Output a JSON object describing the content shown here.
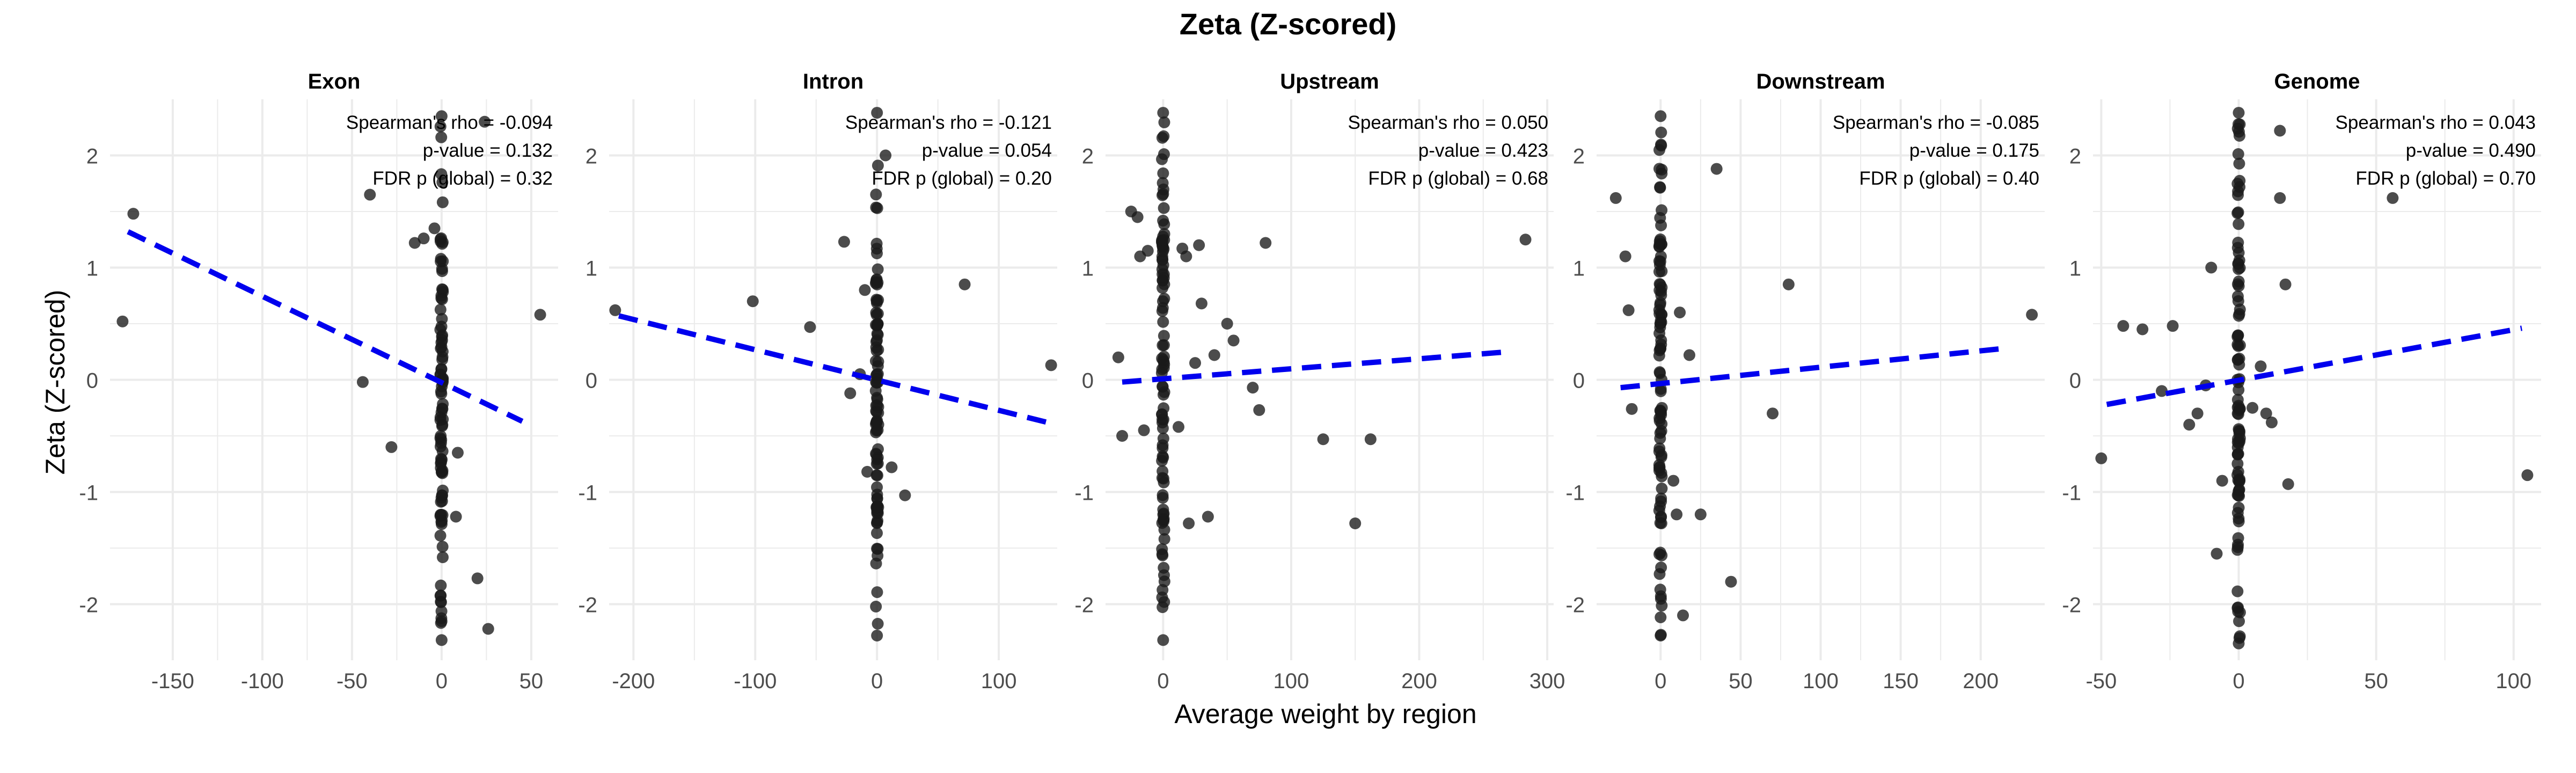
{
  "figure": {
    "title": "Zeta (Z-scored)",
    "xlabel": "Average weight by region",
    "ylabel": "Zeta (Z-scored)"
  },
  "colors": {
    "points": "#1a1a1a",
    "trend": "#0000ee",
    "grid": "#ebebeb"
  },
  "chart_data": [
    {
      "type": "scatter",
      "title": "Exon",
      "ylim": [
        -2.5,
        2.5
      ],
      "xlim": [
        -185,
        65
      ],
      "x_ticks": [
        -150,
        -100,
        -50,
        0,
        50
      ],
      "y_ticks": [
        -2,
        -1,
        0,
        1,
        2
      ],
      "annotation": [
        "Spearman's rho = -0.094",
        "p-value = 0.132",
        "FDR p (global) = 0.32"
      ],
      "trend": {
        "x": [
          -175,
          45
        ],
        "y": [
          1.32,
          -0.37
        ]
      },
      "points": {
        "x": [
          -178,
          -172,
          -44,
          -40,
          -28,
          -15,
          -10,
          -4,
          8,
          9,
          20,
          24,
          26,
          55
        ],
        "y": [
          0.52,
          1.48,
          -0.02,
          1.65,
          -0.6,
          1.22,
          1.26,
          1.35,
          -1.22,
          -0.65,
          -1.77,
          2.3,
          -2.22,
          0.58
        ]
      },
      "cluster": {
        "x": 0,
        "y_min": -2.32,
        "y_max": 2.35
      }
    },
    {
      "type": "scatter",
      "title": "Intron",
      "ylim": [
        -2.5,
        2.5
      ],
      "xlim": [
        -220,
        148
      ],
      "x_ticks": [
        -200,
        -100,
        0,
        100
      ],
      "y_ticks": [
        -2,
        -1,
        0,
        1,
        2
      ],
      "annotation": [
        "Spearman's rho = -0.121",
        "p-value = 0.054",
        "FDR p (global) = 0.20"
      ],
      "trend": {
        "x": [
          -212,
          140
        ],
        "y": [
          0.57,
          -0.38
        ]
      },
      "points": {
        "x": [
          -215,
          -102,
          -55,
          -27,
          -22,
          -14,
          -10,
          -8,
          7,
          12,
          23,
          72,
          143
        ],
        "y": [
          0.62,
          0.7,
          0.47,
          1.23,
          -0.12,
          0.05,
          0.8,
          -0.82,
          2.0,
          -0.78,
          -1.03,
          0.85,
          0.13
        ]
      },
      "cluster": {
        "x": 0,
        "y_min": -2.28,
        "y_max": 2.38
      }
    },
    {
      "type": "scatter",
      "title": "Upstream",
      "ylim": [
        -2.5,
        2.5
      ],
      "xlim": [
        -45,
        305
      ],
      "x_ticks": [
        0,
        100,
        200,
        300
      ],
      "y_ticks": [
        -2,
        -1,
        0,
        1,
        2
      ],
      "annotation": [
        "Spearman's rho = 0.050",
        "p-value = 0.423",
        "FDR p (global) = 0.68"
      ],
      "trend": {
        "x": [
          -32,
          270
        ],
        "y": [
          -0.02,
          0.25
        ]
      },
      "points": {
        "x": [
          -35,
          -32,
          -25,
          -20,
          -18,
          -15,
          -12,
          12,
          15,
          18,
          20,
          25,
          28,
          30,
          35,
          40,
          50,
          55,
          70,
          75,
          80,
          125,
          150,
          162,
          283
        ],
        "y": [
          0.2,
          -0.5,
          1.5,
          1.45,
          1.1,
          -0.45,
          1.15,
          -0.42,
          1.17,
          1.1,
          -1.28,
          0.15,
          1.2,
          0.68,
          -1.22,
          0.22,
          0.5,
          0.35,
          -0.07,
          -0.27,
          1.22,
          -0.53,
          -1.28,
          -0.53,
          1.25
        ]
      },
      "cluster": {
        "x": 0,
        "y_min": -2.32,
        "y_max": 2.38
      }
    },
    {
      "type": "scatter",
      "title": "Downstream",
      "ylim": [
        -2.5,
        2.5
      ],
      "xlim": [
        -40,
        240
      ],
      "x_ticks": [
        0,
        50,
        100,
        150,
        200
      ],
      "y_ticks": [
        -2,
        -1,
        0,
        1,
        2
      ],
      "annotation": [
        "Spearman's rho = -0.085",
        "p-value = 0.175",
        "FDR p (global) = 0.40"
      ],
      "trend": {
        "x": [
          -25,
          215
        ],
        "y": [
          -0.07,
          0.28
        ]
      },
      "points": {
        "x": [
          -28,
          -22,
          -20,
          -18,
          8,
          10,
          12,
          14,
          18,
          25,
          35,
          44,
          70,
          80,
          232
        ],
        "y": [
          1.62,
          1.1,
          0.62,
          -0.26,
          -0.9,
          -1.2,
          0.6,
          -2.1,
          0.22,
          -1.2,
          1.88,
          -1.8,
          -0.3,
          0.85,
          0.58
        ]
      },
      "cluster": {
        "x": 0,
        "y_min": -2.28,
        "y_max": 2.35
      }
    },
    {
      "type": "scatter",
      "title": "Genome",
      "ylim": [
        -2.5,
        2.5
      ],
      "xlim": [
        -53,
        110
      ],
      "x_ticks": [
        -50,
        0,
        50,
        100
      ],
      "y_ticks": [
        -2,
        -1,
        0,
        1,
        2
      ],
      "annotation": [
        "Spearman's rho = 0.043",
        "p-value = 0.490",
        "FDR p (global) = 0.70"
      ],
      "trend": {
        "x": [
          -48,
          103
        ],
        "y": [
          -0.22,
          0.46
        ]
      },
      "points": {
        "x": [
          -50,
          -42,
          -35,
          -28,
          -24,
          -18,
          -15,
          -12,
          -10,
          -8,
          -6,
          5,
          8,
          10,
          12,
          15,
          15,
          17,
          18,
          56,
          105
        ],
        "y": [
          -0.7,
          0.48,
          0.45,
          -0.1,
          0.48,
          -0.4,
          -0.3,
          -0.05,
          1.0,
          -1.55,
          -0.9,
          -0.25,
          0.12,
          -0.3,
          -0.38,
          2.22,
          1.62,
          0.85,
          -0.93,
          1.62,
          -0.85
        ]
      },
      "cluster": {
        "x": 0,
        "y_min": -2.35,
        "y_max": 2.38
      }
    }
  ]
}
